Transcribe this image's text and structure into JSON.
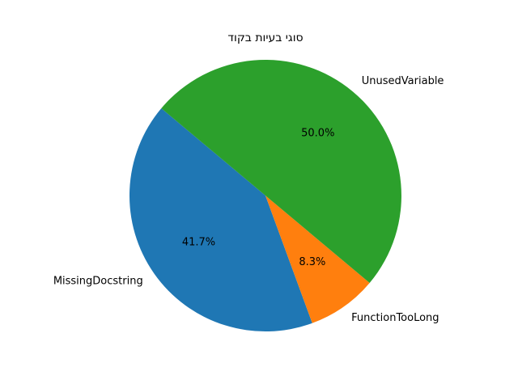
{
  "chart_data": {
    "type": "pie",
    "title": "סוגי בעיות בקוד",
    "start_angle_deg": 140,
    "direction": "counterclockwise",
    "slices": [
      {
        "label": "MissingDocstring",
        "value": 41.7,
        "pct_label": "41.7%",
        "color": "#1f77b4"
      },
      {
        "label": "FunctionTooLong",
        "value": 8.3,
        "pct_label": "8.3%",
        "color": "#ff7f0e"
      },
      {
        "label": "UnusedVariable",
        "value": 50.0,
        "pct_label": "50.0%",
        "color": "#2ca02c"
      }
    ]
  }
}
